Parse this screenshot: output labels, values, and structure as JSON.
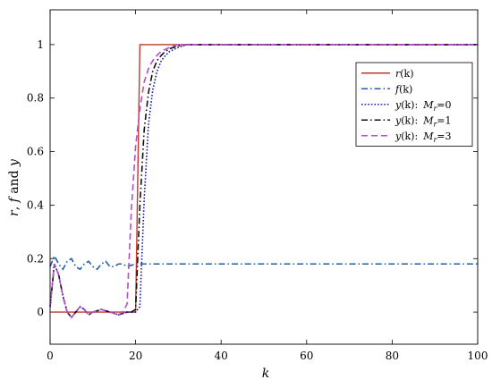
{
  "chart_data": {
    "type": "line",
    "title": "",
    "xlabel": "k",
    "ylabel": "r, f and y",
    "xlim": [
      0,
      100
    ],
    "ylim": [
      -0.12,
      1.13
    ],
    "xticks": [
      0,
      20,
      40,
      60,
      80,
      100
    ],
    "yticks": [
      0,
      0.2,
      0.4,
      0.6,
      0.8,
      1
    ],
    "xtick_labels": [
      "0",
      "20",
      "40",
      "60",
      "80",
      "100"
    ],
    "ytick_labels": [
      "0",
      "0.2",
      "0.4",
      "0.6",
      "0.8",
      "1"
    ],
    "grid": false,
    "legend_position": "top-right",
    "series": [
      {
        "name": "r(k)",
        "color": "#c0392b",
        "dash": "solid",
        "x": [
          0,
          20,
          21,
          100
        ],
        "y": [
          0,
          0,
          1,
          1
        ]
      },
      {
        "name": "f(k)",
        "color": "#1f5fa8",
        "dash": "dashdot",
        "x": [
          0,
          1,
          2,
          3,
          4,
          5,
          6,
          7,
          8,
          9,
          10,
          11,
          12,
          13,
          14,
          15,
          16,
          17,
          18,
          20,
          25,
          30,
          40,
          50,
          60,
          70,
          80,
          90,
          100
        ],
        "y": [
          0.17,
          0.21,
          0.18,
          0.16,
          0.19,
          0.2,
          0.17,
          0.16,
          0.18,
          0.19,
          0.17,
          0.16,
          0.18,
          0.19,
          0.17,
          0.17,
          0.18,
          0.18,
          0.17,
          0.18,
          0.18,
          0.18,
          0.18,
          0.18,
          0.18,
          0.18,
          0.18,
          0.18,
          0.18
        ]
      },
      {
        "name": "y(k):  Mr=0",
        "color": "#1a1aa8",
        "dash": "dotted",
        "x": [
          0,
          1,
          2,
          3,
          4,
          5,
          6,
          7,
          8,
          9,
          10,
          12,
          14,
          16,
          18,
          20,
          21,
          22,
          23,
          24,
          25,
          26,
          27,
          28,
          30,
          32,
          35,
          40,
          50,
          60,
          80,
          100
        ],
        "y": [
          0.02,
          0.18,
          0.14,
          0.06,
          0.0,
          -0.02,
          0.0,
          0.02,
          0.01,
          -0.01,
          0.0,
          0.01,
          0.0,
          -0.01,
          0.0,
          0.0,
          0.02,
          0.42,
          0.7,
          0.83,
          0.9,
          0.94,
          0.96,
          0.975,
          0.99,
          1.0,
          1.0,
          1.0,
          1.0,
          1.0,
          1.0,
          1.0
        ]
      },
      {
        "name": "y(k):  Mr=1",
        "color": "#111111",
        "dash": "dashdot",
        "x": [
          0,
          1,
          2,
          3,
          4,
          5,
          6,
          7,
          8,
          9,
          10,
          12,
          14,
          16,
          18,
          19,
          20,
          21,
          22,
          23,
          24,
          25,
          26,
          27,
          28,
          30,
          32,
          35,
          40,
          50,
          60,
          80,
          100
        ],
        "y": [
          0.02,
          0.18,
          0.14,
          0.06,
          0.0,
          -0.02,
          0.0,
          0.02,
          0.01,
          -0.01,
          0.0,
          0.01,
          0.0,
          -0.01,
          0.0,
          0.0,
          0.01,
          0.4,
          0.68,
          0.82,
          0.9,
          0.94,
          0.96,
          0.975,
          0.985,
          0.995,
          1.0,
          1.0,
          1.0,
          1.0,
          1.0,
          1.0,
          1.0
        ]
      },
      {
        "name": "y(k):  Mr=3",
        "color": "#b84bd0",
        "dash": "dashed",
        "x": [
          0,
          1,
          2,
          3,
          4,
          5,
          6,
          7,
          8,
          9,
          10,
          12,
          14,
          16,
          17,
          18,
          19,
          20,
          21,
          22,
          23,
          24,
          25,
          26,
          28,
          30,
          32,
          35,
          40,
          50,
          60,
          80,
          100
        ],
        "y": [
          0.02,
          0.18,
          0.14,
          0.06,
          0.0,
          -0.02,
          0.0,
          0.02,
          0.01,
          -0.01,
          0.0,
          0.01,
          0.0,
          -0.01,
          0.0,
          0.03,
          0.38,
          0.62,
          0.76,
          0.86,
          0.91,
          0.94,
          0.96,
          0.975,
          0.99,
          1.0,
          1.0,
          1.0,
          1.0,
          1.0,
          1.0,
          1.0,
          1.0
        ]
      }
    ],
    "legend_labels": [
      {
        "prefix": "r",
        "arg": "(k)",
        "suffix": ""
      },
      {
        "prefix": "f",
        "arg": "(k)",
        "suffix": ""
      },
      {
        "prefix": "y",
        "arg": "(k):",
        "suffix": "=0"
      },
      {
        "prefix": "y",
        "arg": "(k):",
        "suffix": "=1"
      },
      {
        "prefix": "y",
        "arg": "(k):",
        "suffix": "=3"
      }
    ]
  }
}
